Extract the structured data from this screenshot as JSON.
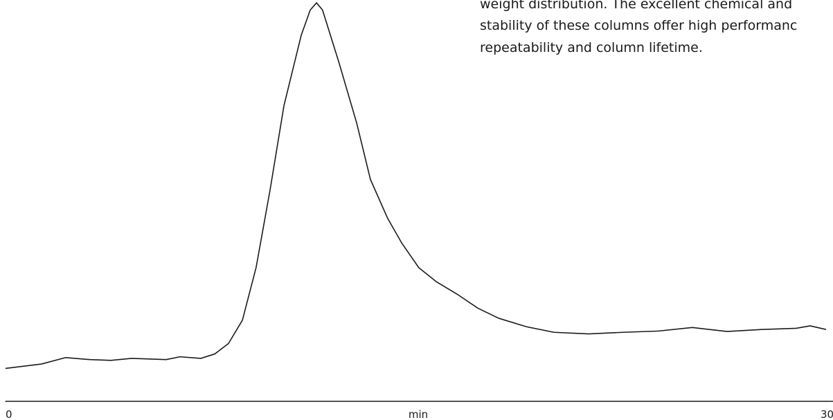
{
  "chart_data": {
    "type": "line",
    "xlabel": "min",
    "annotations": [
      "weight distribution. The excellent chemical and",
      "stability of these columns offer high performanc",
      "repeatability and column lifetime."
    ],
    "x": [
      0,
      1.32,
      2.2,
      3.09,
      3.85,
      4.61,
      5.87,
      6.38,
      7.14,
      7.65,
      8.15,
      8.66,
      9.16,
      9.67,
      10.18,
      10.81,
      11.14,
      11.37,
      11.59,
      12.2,
      12.84,
      13.34,
      13.97,
      14.48,
      15.11,
      15.75,
      16.51,
      17.27,
      18.03,
      19.04,
      20.05,
      21.32,
      22.58,
      23.85,
      25.11,
      26.38,
      27.64,
      28.91,
      29.42,
      30
    ],
    "series": [
      {
        "color": "#1a1a1a",
        "values": [
          8.2,
          9.3,
          10.9,
          10.4,
          10.2,
          10.7,
          10.4,
          11.1,
          10.7,
          11.8,
          14.4,
          20.2,
          33.3,
          52.6,
          73.7,
          91.2,
          97.5,
          99.3,
          97.5,
          84.2,
          69.3,
          55.3,
          45.6,
          39.5,
          33.3,
          29.8,
          26.7,
          23.2,
          20.7,
          18.6,
          17.2,
          16.8,
          17.2,
          17.5,
          18.4,
          17.4,
          17.9,
          18.2,
          18.8,
          17.9
        ]
      }
    ],
    "xlim": [
      0,
      30
    ],
    "xticks": [
      0,
      30
    ],
    "ylim": [
      0,
      100
    ]
  }
}
